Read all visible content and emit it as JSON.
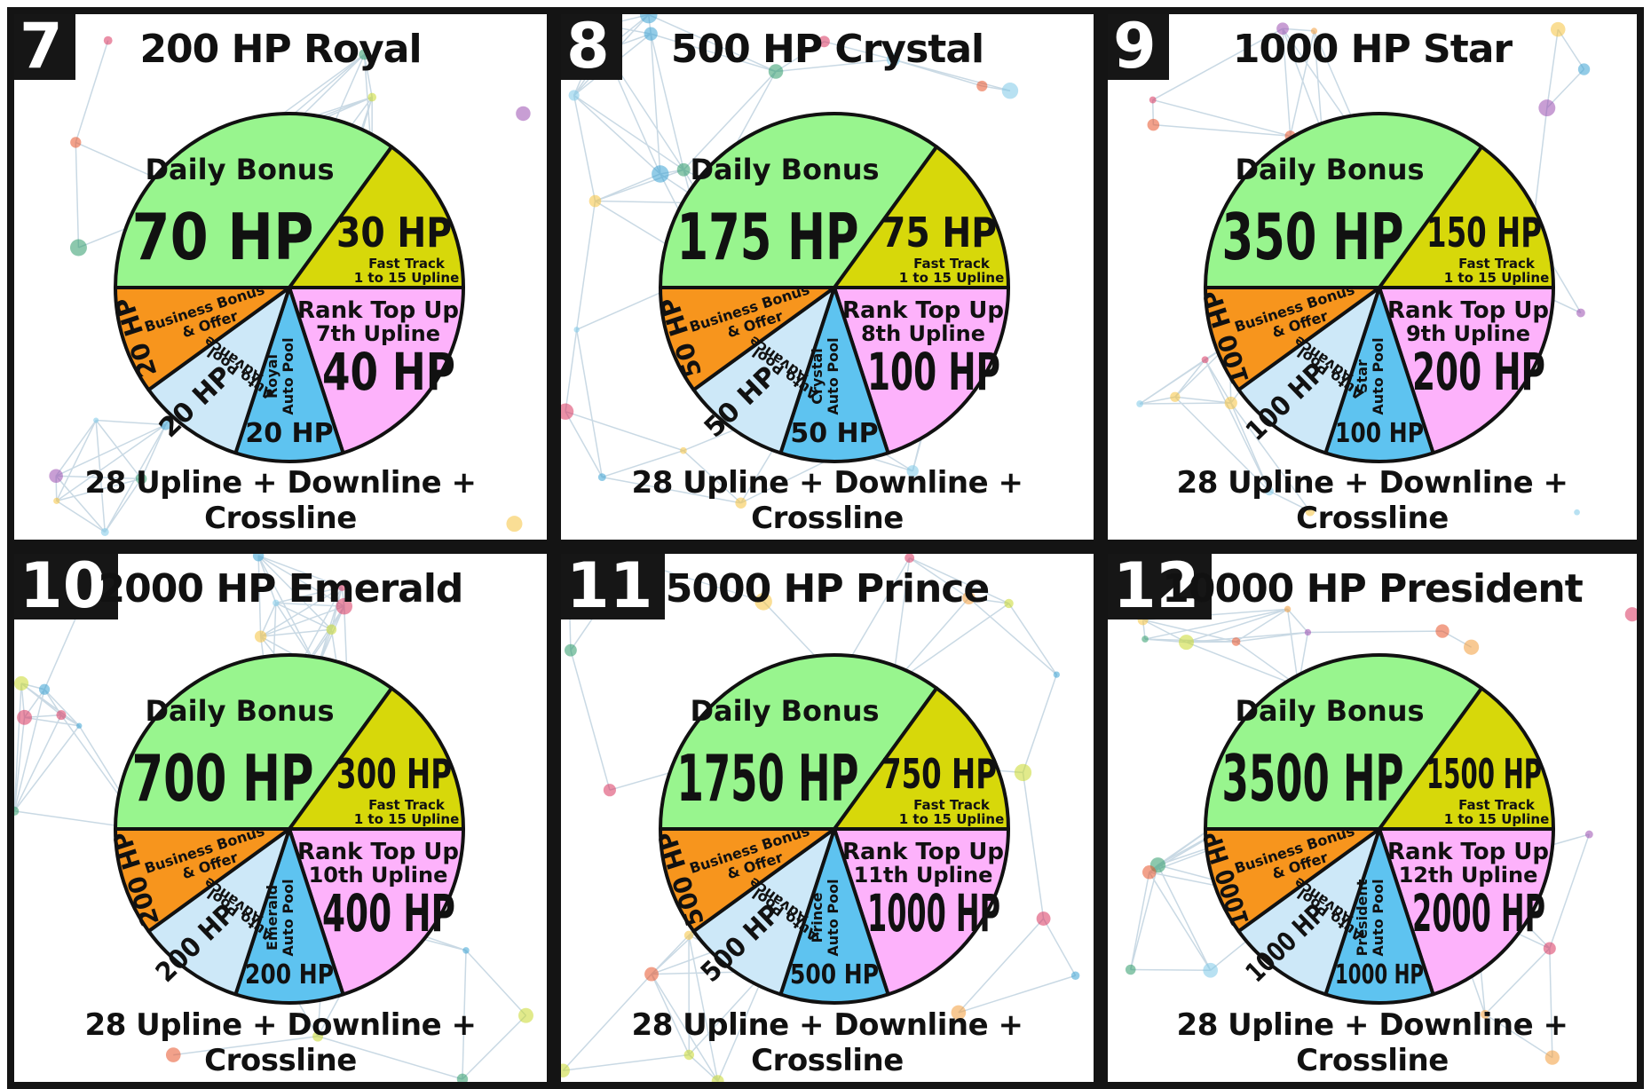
{
  "colors": {
    "daily": "#98f58e",
    "fast": "#d7d80a",
    "rank": "#fdb2fb",
    "business": "#f7951d",
    "advance": "#cde8f8",
    "pool": "#5ec3f0",
    "border": "#111111"
  },
  "chart_data": [
    {
      "type": "pie",
      "number": "7",
      "title": "200 HP Royal",
      "footer": "28 Upline + Downline + Crossline",
      "slices": [
        {
          "label": "Daily Bonus",
          "value": 70,
          "value_label": "70 HP"
        },
        {
          "label": "Fast Track",
          "sublabel": "1 to 15 Upline",
          "value": 30,
          "value_label": "30 HP"
        },
        {
          "label": "Rank Top Up",
          "sublabel": "7th Upline",
          "value": 40,
          "value_label": "40 HP"
        },
        {
          "label": "Royal Auto Pool",
          "label_lines": [
            "Royal",
            "Auto Pool"
          ],
          "value": 20,
          "value_label": "20 HP"
        },
        {
          "label": "Advance Auto Pool",
          "label_lines": [
            "Advance",
            "Auto Pool"
          ],
          "value": 20,
          "value_label": "20 HP"
        },
        {
          "label": "Business Bonus & Offer",
          "label_lines": [
            "Business Bonus",
            "& Offer"
          ],
          "value": 20,
          "value_label": "20 HP"
        }
      ]
    },
    {
      "type": "pie",
      "number": "8",
      "title": "500 HP Crystal",
      "footer": "28 Upline + Downline + Crossline",
      "slices": [
        {
          "label": "Daily Bonus",
          "value": 175,
          "value_label": "175 HP"
        },
        {
          "label": "Fast Track",
          "sublabel": "1 to 15 Upline",
          "value": 75,
          "value_label": "75 HP"
        },
        {
          "label": "Rank Top Up",
          "sublabel": "8th Upline",
          "value": 100,
          "value_label": "100 HP"
        },
        {
          "label": "Crystal Auto Pool",
          "label_lines": [
            "Crystal",
            "Auto Pool"
          ],
          "value": 50,
          "value_label": "50 HP"
        },
        {
          "label": "Advance Auto Pool",
          "label_lines": [
            "Advance",
            "Auto Pool"
          ],
          "value": 50,
          "value_label": "50 HP"
        },
        {
          "label": "Business Bonus & Offer",
          "label_lines": [
            "Business Bonus",
            "& Offer"
          ],
          "value": 50,
          "value_label": "50 HP"
        }
      ]
    },
    {
      "type": "pie",
      "number": "9",
      "title": "1000 HP Star",
      "footer": "28 Upline + Downline + Crossline",
      "slices": [
        {
          "label": "Daily Bonus",
          "value": 350,
          "value_label": "350 HP"
        },
        {
          "label": "Fast Track",
          "sublabel": "1 to 15 Upline",
          "value": 150,
          "value_label": "150 HP"
        },
        {
          "label": "Rank Top Up",
          "sublabel": "9th Upline",
          "value": 200,
          "value_label": "200 HP"
        },
        {
          "label": "Star Auto Pool",
          "label_lines": [
            "Star",
            "Auto Pool"
          ],
          "value": 100,
          "value_label": "100 HP"
        },
        {
          "label": "Advance Auto Pool",
          "label_lines": [
            "Advance",
            "Auto Pool"
          ],
          "value": 100,
          "value_label": "100 HP"
        },
        {
          "label": "Business Bonus & Offer",
          "label_lines": [
            "Business Bonus",
            "& Offer"
          ],
          "value": 100,
          "value_label": "100 HP"
        }
      ]
    },
    {
      "type": "pie",
      "number": "10",
      "title": "2000 HP Emerald",
      "footer": "28 Upline + Downline + Crossline",
      "slices": [
        {
          "label": "Daily Bonus",
          "value": 700,
          "value_label": "700 HP"
        },
        {
          "label": "Fast Track",
          "sublabel": "1 to 15 Upline",
          "value": 300,
          "value_label": "300 HP"
        },
        {
          "label": "Rank Top Up",
          "sublabel": "10th Upline",
          "value": 400,
          "value_label": "400 HP"
        },
        {
          "label": "Emerald Auto Pool",
          "label_lines": [
            "Emerald",
            "Auto Pool"
          ],
          "value": 200,
          "value_label": "200 HP"
        },
        {
          "label": "Advance Auto Pool",
          "label_lines": [
            "Advance",
            "Auto Pool"
          ],
          "value": 200,
          "value_label": "200 HP"
        },
        {
          "label": "Business Bonus & Offer",
          "label_lines": [
            "Business Bonus",
            "& Offer"
          ],
          "value": 200,
          "value_label": "200 HP"
        }
      ]
    },
    {
      "type": "pie",
      "number": "11",
      "title": "5000 HP Prince",
      "footer": "28 Upline + Downline + Crossline",
      "slices": [
        {
          "label": "Daily Bonus",
          "value": 1750,
          "value_label": "1750 HP"
        },
        {
          "label": "Fast Track",
          "sublabel": "1 to 15 Upline",
          "value": 750,
          "value_label": "750 HP"
        },
        {
          "label": "Rank Top Up",
          "sublabel": "11th Upline",
          "value": 1000,
          "value_label": "1000 HP"
        },
        {
          "label": "Prince Auto Pool",
          "label_lines": [
            "Prince",
            "Auto Pool"
          ],
          "value": 500,
          "value_label": "500 HP"
        },
        {
          "label": "Advance Auto Pool",
          "label_lines": [
            "Advance",
            "Auto Pool"
          ],
          "value": 500,
          "value_label": "500 HP"
        },
        {
          "label": "Business Bonus & Offer",
          "label_lines": [
            "Business Bonus",
            "& Offer"
          ],
          "value": 500,
          "value_label": "500 HP"
        }
      ]
    },
    {
      "type": "pie",
      "number": "12",
      "title": "10000 HP President",
      "footer": "28 Upline + Downline + Crossline",
      "slices": [
        {
          "label": "Daily Bonus",
          "value": 3500,
          "value_label": "3500 HP"
        },
        {
          "label": "Fast Track",
          "sublabel": "1 to 15 Upline",
          "value": 1500,
          "value_label": "1500 HP"
        },
        {
          "label": "Rank Top Up",
          "sublabel": "12th Upline",
          "value": 2000,
          "value_label": "2000 HP"
        },
        {
          "label": "President Auto Pool",
          "label_lines": [
            "President",
            "Auto Pool"
          ],
          "value": 1000,
          "value_label": "1000 HP"
        },
        {
          "label": "Advance Auto Pool",
          "label_lines": [
            "Advance",
            "Auto Pool"
          ],
          "value": 1000,
          "value_label": "1000 HP"
        },
        {
          "label": "Business Bonus & Offer",
          "label_lines": [
            "Business Bonus",
            "& Offer"
          ],
          "value": 1000,
          "value_label": "1000 HP"
        }
      ]
    }
  ]
}
